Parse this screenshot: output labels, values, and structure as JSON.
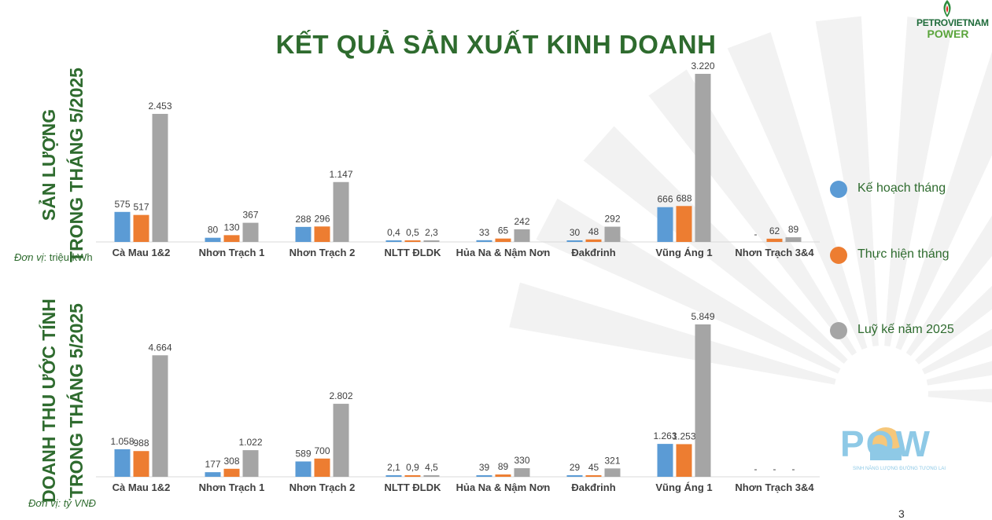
{
  "title": "KẾT QUẢ SẢN XUẤT KINH DOANH",
  "logo": {
    "line1": "PETROVIETNAM",
    "line2": "POWER"
  },
  "pow_logo": {
    "word": "POW",
    "tagline": "SINH NĂNG LƯỢNG ĐƯỜNG TƯƠNG LAI"
  },
  "page_number": "3",
  "colors": {
    "title": "#2e6b2e",
    "plan": "#5b9bd5",
    "actual": "#ed7d31",
    "cumulative": "#a5a5a5"
  },
  "legend": [
    {
      "label": "Kế hoạch tháng",
      "color": "#5b9bd5"
    },
    {
      "label": "Thực hiện tháng",
      "color": "#ed7d31"
    },
    {
      "label": "Luỹ kế năm 2025",
      "color": "#a5a5a5"
    }
  ],
  "section1": {
    "label_line1": "SẢN LƯỢNG",
    "label_line2": "TRONG THÁNG 5/2025",
    "unit_prefix": "Đơn vị",
    "unit_suffix": ": triệu kWh"
  },
  "section2": {
    "label_line1": "DOANH THU ƯỚC TÍNH",
    "label_line2": "TRONG THÁNG 5/2025",
    "unit": "Đơn vị: tỷ VNĐ"
  },
  "chart_data": [
    {
      "type": "bar",
      "categories": [
        "Cà Mau 1&2",
        "Nhơn Trạch 1",
        "Nhơn Trạch 2",
        "NLTT ĐLDK",
        "Hủa Na & Nậm Nơn",
        "Đakđrinh",
        "Vũng Áng 1",
        "Nhơn Trạch 3&4"
      ],
      "series": [
        {
          "name": "Kế hoạch tháng",
          "values": [
            575,
            80,
            288,
            0.4,
            33,
            30,
            666,
            0
          ],
          "labels": [
            "575",
            "80",
            "288",
            "0,4",
            "33",
            "30",
            "666",
            "-"
          ]
        },
        {
          "name": "Thực hiện tháng",
          "values": [
            517,
            130,
            296,
            0.5,
            65,
            48,
            688,
            62
          ],
          "labels": [
            "517",
            "130",
            "296",
            "0,5",
            "65",
            "48",
            "688",
            "62"
          ]
        },
        {
          "name": "Luỹ kế năm 2025",
          "values": [
            2453,
            367,
            1147,
            2.3,
            242,
            292,
            3220,
            89
          ],
          "labels": [
            "2.453",
            "367",
            "1.147",
            "2,3",
            "242",
            "292",
            "3.220",
            "89"
          ]
        }
      ],
      "ylim": [
        0,
        3220
      ]
    },
    {
      "type": "bar",
      "categories": [
        "Cà Mau 1&2",
        "Nhơn Trạch 1",
        "Nhơn Trạch 2",
        "NLTT ĐLDK",
        "Hủa Na & Nậm Nơn",
        "Đakđrinh",
        "Vũng Áng 1",
        "Nhơn Trạch 3&4"
      ],
      "series": [
        {
          "name": "Kế hoạch tháng",
          "values": [
            1058,
            177,
            589,
            2.1,
            39,
            29,
            1263,
            0
          ],
          "labels": [
            "1.058",
            "177",
            "589",
            "2,1",
            "39",
            "29",
            "1.263",
            "-"
          ]
        },
        {
          "name": "Thực hiện tháng",
          "values": [
            988,
            308,
            700,
            0.9,
            89,
            45,
            1253,
            0
          ],
          "labels": [
            "988",
            "308",
            "700",
            "0,9",
            "89",
            "45",
            "1.253",
            "-"
          ]
        },
        {
          "name": "Luỹ kế năm 2025",
          "values": [
            4664,
            1022,
            2802,
            4.5,
            330,
            321,
            5849,
            0
          ],
          "labels": [
            "4.664",
            "1.022",
            "2.802",
            "4,5",
            "330",
            "321",
            "5.849",
            "-"
          ]
        }
      ],
      "ylim": [
        0,
        5849
      ]
    }
  ]
}
